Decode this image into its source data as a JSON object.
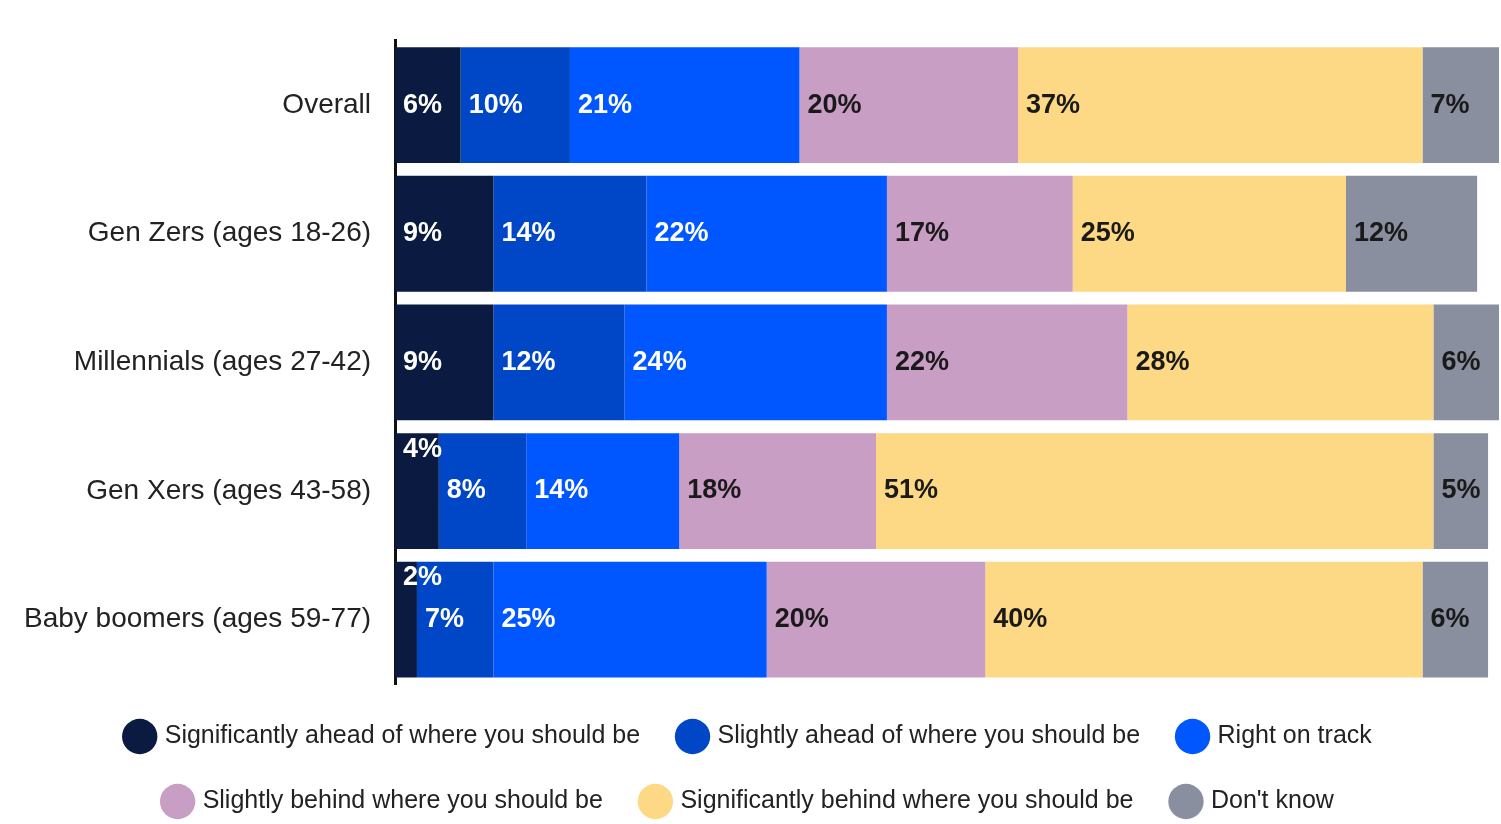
{
  "chart_data": {
    "type": "bar",
    "orientation": "horizontal",
    "stacked": true,
    "categories": [
      "Overall",
      "Gen Zers (ages 18-26)",
      "Millennials (ages 27-42)",
      "Gen Xers (ages 43-58)",
      "Baby boomers (ages 59-77)"
    ],
    "xlim": [
      0,
      101
    ],
    "tick_labels": "y",
    "legend": "bottom",
    "series": [
      {
        "name": "Significantly ahead of where you should be",
        "color": "#0a1a40",
        "values": [
          6,
          9,
          9,
          4,
          2
        ],
        "value_labels": [
          "6%",
          "9%",
          "9%",
          "4%",
          "2%"
        ]
      },
      {
        "name": "Slightly ahead of where you should be",
        "color": "#0047c7",
        "values": [
          10,
          14,
          12,
          8,
          7
        ],
        "value_labels": [
          "10%",
          "14%",
          "12%",
          "8%",
          "7%"
        ]
      },
      {
        "name": "Right on track",
        "color": "#0057ff",
        "values": [
          21,
          22,
          24,
          14,
          25
        ],
        "value_labels": [
          "21%",
          "22%",
          "24%",
          "14%",
          "25%"
        ]
      },
      {
        "name": "Slightly behind where you should be",
        "color": "#c89ec4",
        "values": [
          20,
          17,
          22,
          18,
          20
        ],
        "value_labels": [
          "20%",
          "17%",
          "22%",
          "18%",
          "20%"
        ]
      },
      {
        "name": "Significantly behind where you should be",
        "color": "#fdd985",
        "values": [
          37,
          25,
          28,
          51,
          40
        ],
        "value_labels": [
          "37%",
          "25%",
          "28%",
          "51%",
          "40%"
        ]
      },
      {
        "name": "Don't know",
        "color": "#8a8fa0",
        "values": [
          7,
          12,
          6,
          5,
          6
        ],
        "value_labels": [
          "7%",
          "12%",
          "6%",
          "5%",
          "6%"
        ]
      }
    ]
  }
}
